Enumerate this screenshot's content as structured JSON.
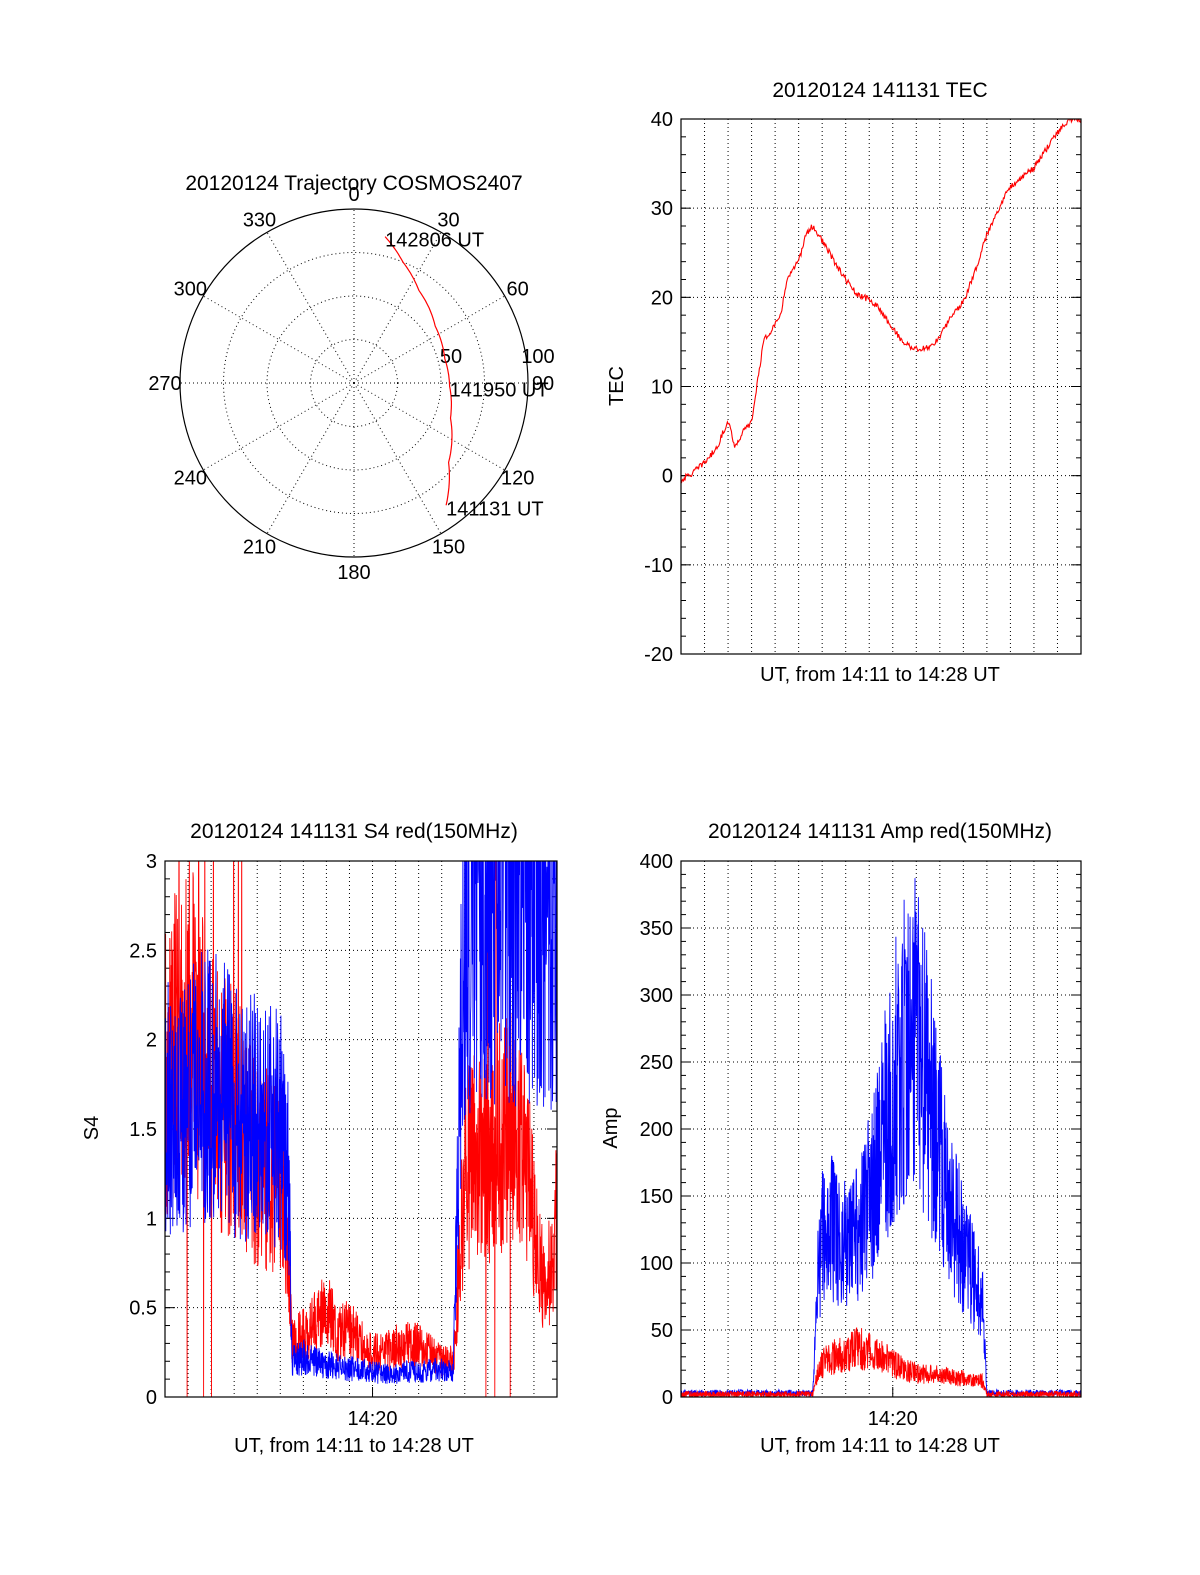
{
  "chart_data": [
    {
      "type": "polar",
      "title": "20120124 Trajectory COSMOS2407",
      "angle_labels": [
        "0",
        "30",
        "60",
        "90",
        "120",
        "150",
        "180",
        "210",
        "240",
        "270",
        "300",
        "330"
      ],
      "radial_labels": [
        "50",
        "100"
      ],
      "rlim": [
        0,
        100
      ],
      "grid": true,
      "series": [
        {
          "color": "#ff0000",
          "points": [
            {
              "az": 12,
              "r": 86
            },
            {
              "az": 22,
              "r": 75
            },
            {
              "az": 35,
              "r": 65
            },
            {
              "az": 55,
              "r": 57
            },
            {
              "az": 75,
              "r": 54
            },
            {
              "az": 92,
              "r": 55
            },
            {
              "az": 110,
              "r": 59
            },
            {
              "az": 130,
              "r": 71
            },
            {
              "az": 143,
              "r": 88
            }
          ]
        }
      ],
      "annotations": [
        {
          "text": "142806 UT",
          "az": 12,
          "r": 86
        },
        {
          "text": "141950 UT",
          "az": 92,
          "r": 55
        },
        {
          "text": "141131 UT",
          "az": 143,
          "r": 88
        }
      ]
    },
    {
      "type": "line",
      "title": "20120124 141131 TEC",
      "xlabel": "UT, from 14:11 to 14:28 UT",
      "ylabel": "TEC",
      "xlim": [
        0,
        17
      ],
      "ylim": [
        -20,
        40
      ],
      "yticks": [
        "-20",
        "-10",
        "0",
        "10",
        "20",
        "30",
        "40"
      ],
      "xticks": [],
      "grid": true,
      "series": [
        {
          "color": "#ff0000",
          "x": [
            0,
            0.5,
            1,
            1.5,
            2,
            2.3,
            2.6,
            3,
            3.5,
            4,
            4.2,
            4.5,
            5,
            5.3,
            5.6,
            6.2,
            6.5,
            7,
            7.5,
            8,
            8.5,
            9,
            9.5,
            10,
            10.5,
            11,
            11.5,
            12,
            12.5,
            13,
            13.5,
            14,
            14.5,
            15,
            15.5,
            16,
            16.5,
            16.9
          ],
          "values": [
            -0.5,
            0.3,
            1.5,
            3,
            6.2,
            3.2,
            4.8,
            6,
            15,
            17,
            17.5,
            22,
            24,
            27,
            28,
            25.5,
            24,
            22,
            20.2,
            19.8,
            18.5,
            16.5,
            14.8,
            14.2,
            14.3,
            15.5,
            18,
            19.5,
            23,
            27,
            30,
            32.5,
            33.5,
            34.5,
            36.5,
            38.5,
            40,
            40
          ]
        }
      ]
    },
    {
      "type": "line",
      "title": "20120124 141131 S4 red(150MHz)",
      "xlabel": "UT, from 14:11 to 14:28 UT",
      "ylabel": "S4",
      "xlim": [
        0,
        17
      ],
      "ylim": [
        0,
        3
      ],
      "yticks": [
        "0",
        "0.5",
        "1",
        "1.5",
        "2",
        "2.5",
        "3"
      ],
      "xticks": [
        {
          "value": 9,
          "label": "14:20"
        }
      ],
      "grid": true,
      "series": [
        {
          "color": "#ff0000",
          "x": [
            0,
            1,
            2,
            3,
            4,
            5,
            5.4,
            5.5,
            6,
            6.5,
            7,
            7.5,
            8,
            8.5,
            9,
            9.5,
            10,
            10.5,
            11,
            11.5,
            12,
            12.5,
            13,
            13.5,
            14,
            14.5,
            15,
            15.5,
            16,
            16.5,
            17
          ],
          "values": [
            1.8,
            2.2,
            1.7,
            1.6,
            1.3,
            1.25,
            0.75,
            0.3,
            0.35,
            0.42,
            0.5,
            0.35,
            0.38,
            0.3,
            0.25,
            0.25,
            0.28,
            0.3,
            0.3,
            0.25,
            0.2,
            0.2,
            1.25,
            1.35,
            1.3,
            1.45,
            1.5,
            1.4,
            1.0,
            0.55,
            1.0
          ]
        },
        {
          "color": "#0000ff",
          "x": [
            0,
            1,
            2,
            3,
            4,
            5,
            5.4,
            5.5,
            6,
            6.5,
            7,
            7.5,
            8,
            8.5,
            9,
            9.5,
            10,
            10.5,
            11,
            11.5,
            12,
            12.5,
            13,
            13.5,
            14,
            14.5,
            15,
            15.5,
            16,
            16.5,
            17
          ],
          "values": [
            1.6,
            1.65,
            1.8,
            1.6,
            1.55,
            1.5,
            1.2,
            0.2,
            0.22,
            0.2,
            0.18,
            0.17,
            0.16,
            0.15,
            0.14,
            0.13,
            0.13,
            0.14,
            0.14,
            0.15,
            0.15,
            0.14,
            2.8,
            2.9,
            2.85,
            2.95,
            2.9,
            2.9,
            2.95,
            2.9,
            2.9
          ]
        }
      ]
    },
    {
      "type": "line",
      "title": "20120124 141131 Amp red(150MHz)",
      "xlabel": "UT, from 14:11 to 14:28 UT",
      "ylabel": "Amp",
      "xlim": [
        0,
        17
      ],
      "ylim": [
        0,
        400
      ],
      "yticks": [
        "0",
        "50",
        "100",
        "150",
        "200",
        "250",
        "300",
        "350",
        "400"
      ],
      "xticks": [
        {
          "value": 9,
          "label": "14:20"
        }
      ],
      "grid": true,
      "series": [
        {
          "color": "#0000ff",
          "x": [
            0,
            1,
            2,
            3,
            4,
            5,
            5.6,
            5.8,
            6,
            6.5,
            7,
            7.5,
            8,
            8.5,
            9,
            9.5,
            10,
            10.5,
            11,
            11.5,
            12,
            12.5,
            12.8,
            13,
            14,
            15,
            16,
            17
          ],
          "values": [
            3,
            3,
            3,
            3,
            3,
            3,
            3,
            90,
            120,
            125,
            110,
            120,
            150,
            185,
            230,
            260,
            270,
            230,
            180,
            140,
            110,
            85,
            75,
            3,
            3,
            3,
            3,
            3
          ]
        },
        {
          "color": "#ff0000",
          "x": [
            0,
            1,
            2,
            3,
            4,
            5,
            5.6,
            5.8,
            6,
            6.5,
            7,
            7.5,
            8,
            8.5,
            9,
            9.5,
            10,
            10.5,
            11,
            11.5,
            12,
            12.5,
            12.8,
            13,
            14,
            15,
            16,
            17
          ],
          "values": [
            2,
            2,
            2,
            2,
            2,
            2,
            2,
            18,
            25,
            30,
            33,
            36,
            35,
            30,
            25,
            20,
            18,
            17,
            16,
            15,
            14,
            13,
            12,
            2,
            2,
            2,
            2,
            2
          ]
        }
      ]
    }
  ]
}
